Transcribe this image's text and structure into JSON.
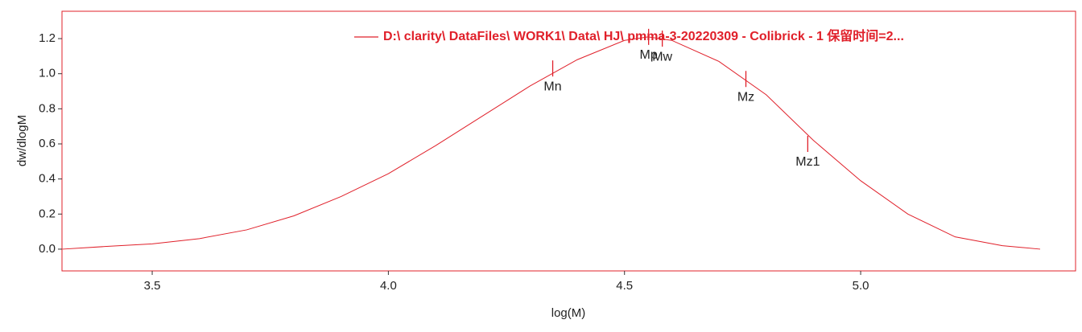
{
  "chart_data": {
    "type": "line",
    "x_label": "log(M)",
    "y_label": "dw/dlogM",
    "xlim": [
      3.309,
      5.455
    ],
    "ylim": [
      -0.124,
      1.356
    ],
    "xticks": [
      3.5,
      {
        "value": 4,
        "label": "4.0"
      },
      4.5,
      {
        "value": 5,
        "label": "5.0"
      }
    ],
    "yticks": [
      {
        "value": 0,
        "label": "0.0"
      },
      0.2,
      0.4,
      0.6,
      0.8,
      {
        "value": 1,
        "label": "1.0"
      },
      1.2
    ],
    "legend": "upper right",
    "series": [
      {
        "name": "D:\\ clarity\\ DataFiles\\ WORK1\\ Data\\ HJ\\ pmma-3-20220309 - Colibrick - 1 保留时间=2...",
        "color": "#e0202a",
        "x": [
          3.31,
          3.4,
          3.5,
          3.6,
          3.7,
          3.8,
          3.9,
          4.0,
          4.1,
          4.2,
          4.3,
          4.4,
          4.5,
          4.55,
          4.6,
          4.7,
          4.8,
          4.9,
          5.0,
          5.1,
          5.2,
          5.3,
          5.38
        ],
        "values": [
          0.0,
          0.015,
          0.03,
          0.06,
          0.11,
          0.19,
          0.3,
          0.43,
          0.59,
          0.76,
          0.93,
          1.08,
          1.19,
          1.21,
          1.19,
          1.07,
          0.88,
          0.62,
          0.39,
          0.2,
          0.07,
          0.02,
          0.0
        ]
      }
    ],
    "markers": [
      {
        "label": "Mn",
        "x": 4.348,
        "y": 1.03
      },
      {
        "label": "Mp",
        "x": 4.551,
        "y": 1.21
      },
      {
        "label": "Mw",
        "x": 4.58,
        "y": 1.2
      },
      {
        "label": "Mz",
        "x": 4.757,
        "y": 0.97
      },
      {
        "label": "Mz1",
        "x": 4.888,
        "y": 0.6
      }
    ]
  }
}
